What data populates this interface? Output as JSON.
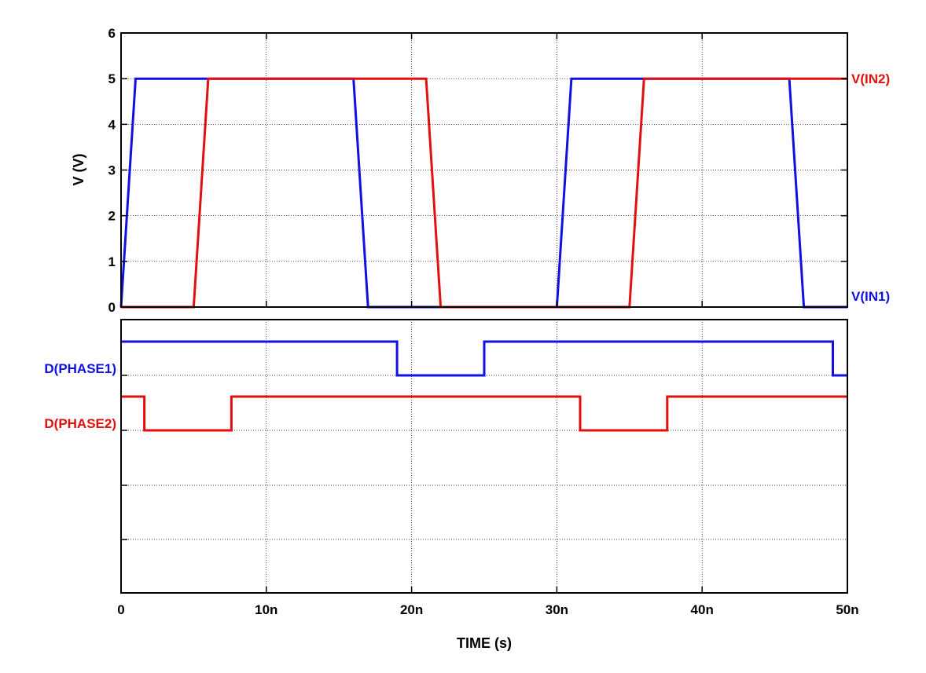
{
  "chart_data": [
    {
      "type": "line",
      "panel": "analog",
      "xlabel": "TIME  (s)",
      "ylabel": "V  (V)",
      "xlim": [
        0,
        50
      ],
      "ylim": [
        0,
        6
      ],
      "x_ticks": [
        0,
        10,
        20,
        30,
        40,
        50
      ],
      "x_tick_labels": [
        "0",
        "10n",
        "20n",
        "30n",
        "40n",
        "50n"
      ],
      "y_ticks": [
        0,
        1,
        2,
        3,
        4,
        5,
        6
      ],
      "y_tick_labels": [
        "0",
        "1",
        "2",
        "3",
        "4",
        "5",
        "6"
      ],
      "grid": true,
      "series": [
        {
          "name": "V(IN1)",
          "color": "#1010e0",
          "x": [
            0,
            1,
            16,
            17,
            30,
            31,
            46,
            47,
            50
          ],
          "y": [
            0,
            5,
            5,
            0,
            0,
            5,
            5,
            0,
            0
          ]
        },
        {
          "name": "V(IN2)",
          "color": "#e01010",
          "x": [
            0,
            5,
            6,
            21,
            22,
            35,
            36,
            50
          ],
          "y": [
            0,
            0,
            5,
            5,
            0,
            0,
            5,
            5
          ]
        }
      ]
    },
    {
      "type": "line",
      "panel": "digital",
      "xlim": [
        0,
        50
      ],
      "grid": true,
      "series": [
        {
          "name": "D(PHASE1)",
          "color": "#1010e0",
          "x": [
            0,
            19,
            19,
            25,
            25,
            49,
            49,
            50
          ],
          "level": [
            1,
            1,
            0,
            0,
            1,
            1,
            0,
            0
          ]
        },
        {
          "name": "D(PHASE2)",
          "color": "#e01010",
          "x": [
            0,
            1.6,
            1.6,
            7.6,
            7.6,
            31.6,
            31.6,
            37.6,
            37.6,
            50
          ],
          "level": [
            1,
            1,
            0,
            0,
            1,
            1,
            0,
            0,
            1,
            1
          ]
        }
      ]
    }
  ]
}
